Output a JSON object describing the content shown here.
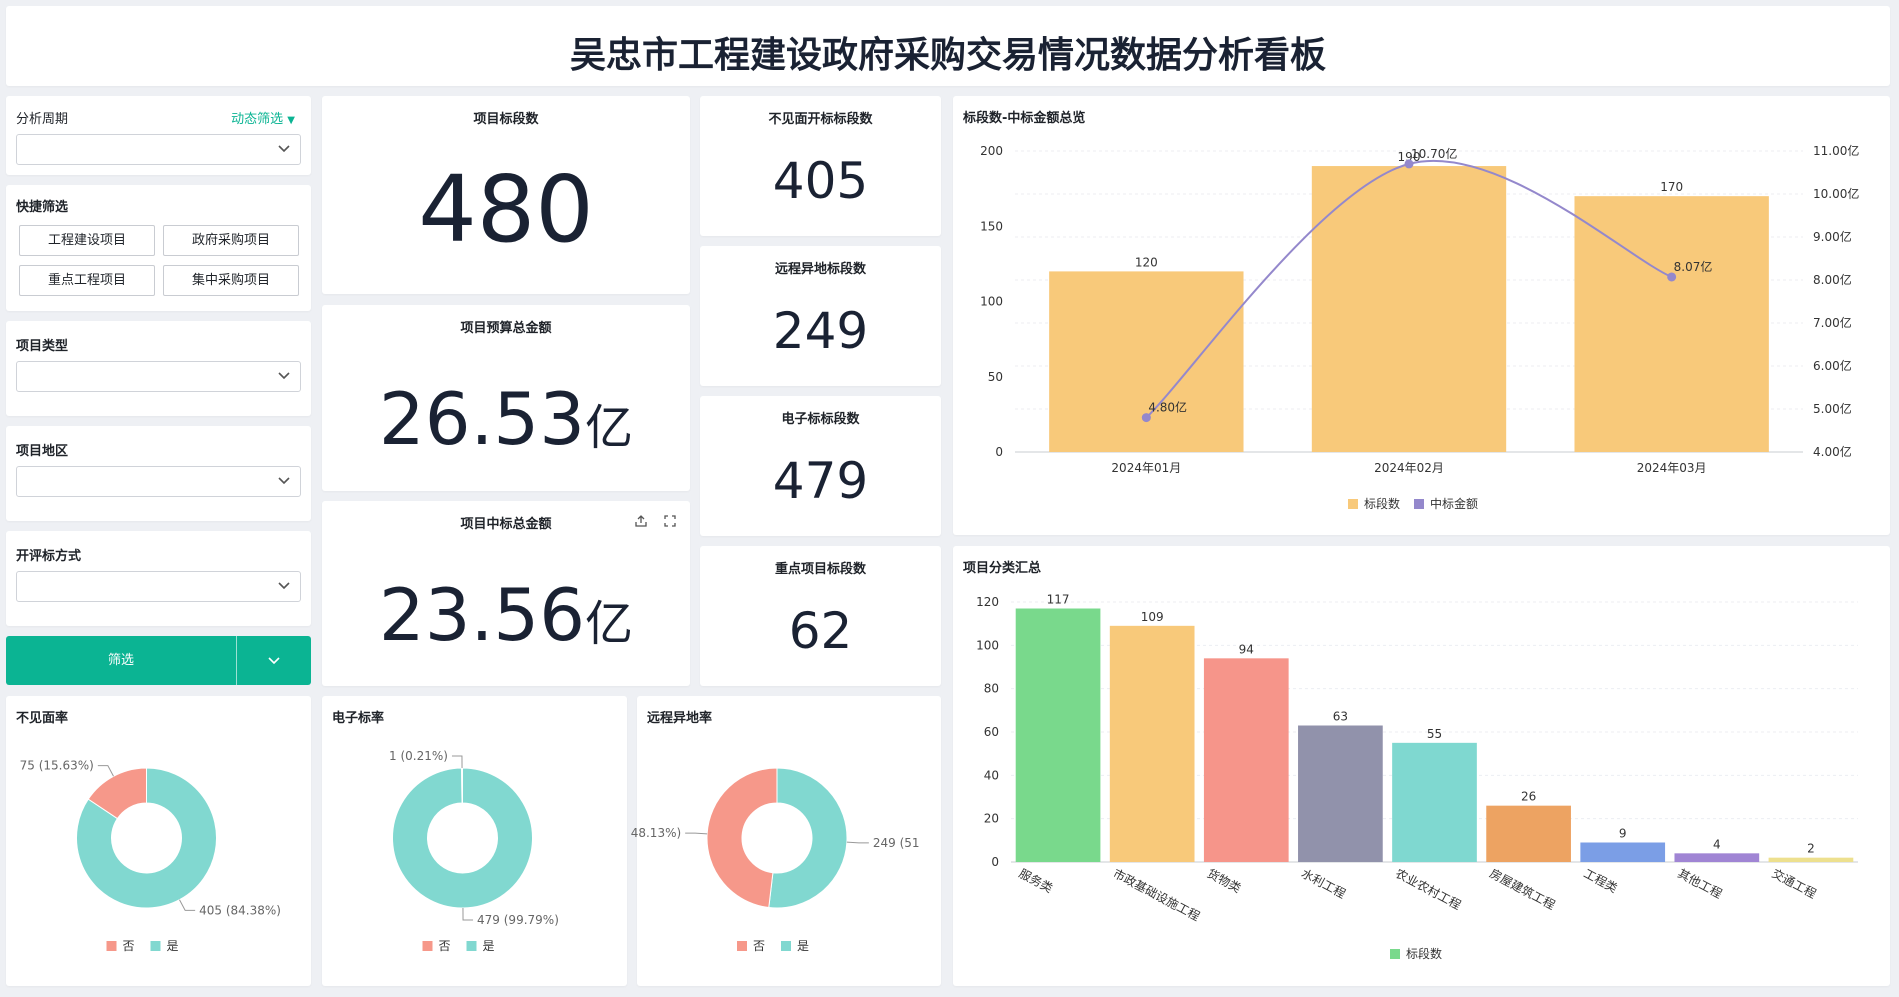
{
  "header": {
    "title": "吴忠市工程建设政府采购交易情况数据分析看板"
  },
  "filters": {
    "period_label": "分析周期",
    "dynamic_filter_label": "动态筛选",
    "quick_filter_label": "快捷筛选",
    "quick_buttons": [
      "工程建设项目",
      "政府采购项目",
      "重点工程项目",
      "集中采购项目"
    ],
    "project_type_label": "项目类型",
    "project_region_label": "项目地区",
    "bid_method_label": "开评标方式",
    "filter_button_label": "筛选",
    "accent_color": "#0bb493"
  },
  "kpis": {
    "sections": {
      "label": "项目标段数",
      "value": "480"
    },
    "budget": {
      "label": "项目预算总金额",
      "value": "26.53",
      "unit": "亿"
    },
    "winning": {
      "label": "项目中标总金额",
      "value": "23.56",
      "unit": "亿"
    },
    "unseen": {
      "label": "不见面开标标段数",
      "value": "405"
    },
    "remote": {
      "label": "远程异地标段数",
      "value": "249"
    },
    "electronic": {
      "label": "电子标标段数",
      "value": "479"
    },
    "key": {
      "label": "重点项目标段数",
      "value": "62"
    }
  },
  "donuts": [
    {
      "title": "不见面率",
      "no_label": "75 (15.63%)",
      "yes_label": "405 (84.38%)",
      "legend_no": "否",
      "legend_yes": "是"
    },
    {
      "title": "电子标率",
      "no_label": "1 (0.21%)",
      "yes_label": "479 (99.79%)",
      "legend_no": "否",
      "legend_yes": "是"
    },
    {
      "title": "远程异地率",
      "no_label": "48.13%)",
      "yes_label": "249 (51",
      "legend_no": "否",
      "legend_yes": "是"
    }
  ],
  "overview_title": "标段数-中标金额总览",
  "classification_title": "项目分类汇总",
  "chart_data": [
    {
      "type": "bar",
      "title": "不见面率",
      "categories": [
        "否",
        "是"
      ],
      "values": [
        75,
        405
      ],
      "colors": [
        "#f6988a",
        "#81d8d0"
      ]
    },
    {
      "type": "bar",
      "title": "电子标率",
      "categories": [
        "否",
        "是"
      ],
      "values": [
        1,
        479
      ],
      "colors": [
        "#f6988a",
        "#81d8d0"
      ]
    },
    {
      "type": "bar",
      "title": "远程异地率",
      "categories": [
        "否",
        "是"
      ],
      "values": [
        231,
        249
      ],
      "colors": [
        "#f6988a",
        "#81d8d0"
      ]
    },
    {
      "type": "bar",
      "title": "标段数-中标金额总览",
      "categories": [
        "2024年01月",
        "2024年02月",
        "2024年03月"
      ],
      "series": [
        {
          "name": "标段数",
          "values": [
            120,
            190,
            170
          ],
          "color": "#f8c97a"
        },
        {
          "name": "中标金额",
          "values": [
            4.8,
            10.7,
            8.07
          ],
          "labels": [
            "4.80亿",
            "10.70亿",
            "8.07亿"
          ],
          "color": "#9488cc"
        }
      ],
      "ylim": [
        0,
        200
      ],
      "yticks": [
        0,
        50,
        100,
        150,
        200
      ],
      "y2lim": [
        4,
        11
      ],
      "y2ticks": [
        "4.00亿",
        "5.00亿",
        "6.00亿",
        "7.00亿",
        "8.00亿",
        "9.00亿",
        "10.00亿",
        "11.00亿"
      ],
      "legend": "bottom"
    },
    {
      "type": "bar",
      "title": "项目分类汇总",
      "categories": [
        "服务类",
        "市政基础设施工程",
        "货物类",
        "水利工程",
        "农业农村工程",
        "房屋建筑工程",
        "工程类",
        "其他工程",
        "交通工程"
      ],
      "values": [
        117,
        109,
        94,
        63,
        55,
        26,
        9,
        4,
        2
      ],
      "colors": [
        "#79d98c",
        "#f8c97a",
        "#f6958a",
        "#9192ab",
        "#7fd8d0",
        "#eda362",
        "#7b9ee6",
        "#a085d4",
        "#ede08e"
      ],
      "series_name": "标段数",
      "ylim": [
        0,
        120
      ],
      "yticks": [
        0,
        20,
        40,
        60,
        80,
        100,
        120
      ],
      "legend": "bottom"
    }
  ]
}
